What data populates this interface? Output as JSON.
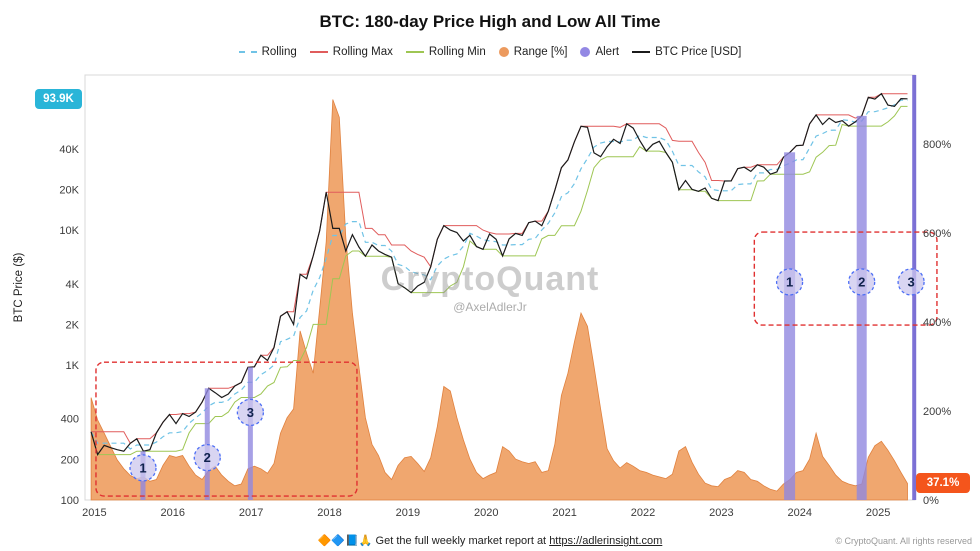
{
  "title": "BTC: 180-day Price High and Low All Time",
  "watermark": {
    "brand": "CryptoQuant",
    "handle": "@AxelAdlerJr"
  },
  "badges": {
    "price_label": "93.9K",
    "price_color": "#2ab5d8",
    "range_label": "37.1%",
    "range_color": "#f4551c"
  },
  "legend": {
    "items": [
      {
        "label": "Rolling",
        "color": "#70c3e6",
        "style": "dashed-line"
      },
      {
        "label": "Rolling Max",
        "color": "#e05c5c",
        "style": "line"
      },
      {
        "label": "Rolling Min",
        "color": "#9ec653",
        "style": "line"
      },
      {
        "label": "Range [%]",
        "color": "#ec9a5e",
        "style": "dot"
      },
      {
        "label": "Alert",
        "color": "#9388e4",
        "style": "dot"
      },
      {
        "label": "BTC Price [USD]",
        "color": "#1b1b1b",
        "style": "line"
      }
    ]
  },
  "footer": {
    "emojis": "🔶🔷📘🙏",
    "text": "Get the full weekly market report at",
    "link": "https://adlerinsight.com",
    "copyright": "© CryptoQuant. All rights reserved"
  },
  "chart_data": {
    "type": "line",
    "title": "BTC: 180-day Price High and Low All Time",
    "x_start_year": 2014.958,
    "x_step_years": 0.083333,
    "x_domain": [
      2014.88,
      2025.47
    ],
    "x_ticks": [
      2015,
      2016,
      2017,
      2018,
      2019,
      2020,
      2021,
      2022,
      2023,
      2024,
      2025
    ],
    "y_left": {
      "label": "BTC Price ($)",
      "scale": "log",
      "domain": [
        100,
        141000
      ],
      "ticks": [
        {
          "v": 40000,
          "t": "40K"
        },
        {
          "v": 20000,
          "t": "20K"
        },
        {
          "v": 10000,
          "t": "10K"
        },
        {
          "v": 4000,
          "t": "4K"
        },
        {
          "v": 2000,
          "t": "2K"
        },
        {
          "v": 1000,
          "t": "1K"
        },
        {
          "v": 400,
          "t": "400"
        },
        {
          "v": 200,
          "t": "200"
        },
        {
          "v": 100,
          "t": "100"
        }
      ]
    },
    "y_right": {
      "label": "Range [%]",
      "scale": "linear",
      "domain": [
        0,
        955
      ],
      "ticks": [
        {
          "v": 800,
          "t": "800%"
        },
        {
          "v": 600,
          "t": "600%"
        },
        {
          "v": 400,
          "t": "400%"
        },
        {
          "v": 200,
          "t": "200%"
        },
        {
          "v": 0,
          "t": "0%"
        }
      ]
    },
    "rolling_window_months": 6,
    "series": [
      {
        "name": "BTC Price [USD]",
        "axis": "left",
        "type": "line",
        "color": "#1b1b1b",
        "values": [
          320,
          217,
          254,
          244,
          236,
          230,
          263,
          284,
          230,
          236,
          314,
          377,
          430,
          368,
          437,
          416,
          448,
          531,
          673,
          624,
          575,
          610,
          700,
          742,
          963,
          970,
          1180,
          1080,
          1350,
          2300,
          2480,
          2000,
          4703,
          4360,
          6440,
          9916,
          19100,
          10300,
          10300,
          7000,
          9250,
          7500,
          6400,
          7750,
          7000,
          6600,
          6300,
          4000,
          3740,
          3440,
          3850,
          4100,
          5350,
          8550,
          10800,
          10000,
          9600,
          8300,
          9150,
          7550,
          7200,
          9350,
          8550,
          6440,
          8600,
          9450,
          9140,
          11350,
          11650,
          10780,
          13800,
          19700,
          29000,
          33100,
          45100,
          58800,
          57750,
          37300,
          35000,
          41500,
          47100,
          43800,
          61300,
          57000,
          46200,
          38500,
          43200,
          45500,
          37600,
          31800,
          19900,
          23300,
          20050,
          19400,
          20500,
          17200,
          16550,
          23100,
          23150,
          28500,
          29250,
          27200,
          30450,
          29230,
          25930,
          26970,
          34660,
          37700,
          42270,
          42580,
          61200,
          71330,
          60640,
          67540,
          62670,
          64620,
          58970,
          63330,
          70200,
          96450,
          93430,
          102400,
          84350,
          82550,
          94200,
          93900
        ]
      },
      {
        "name": "Range [%]",
        "axis": "right",
        "type": "area",
        "color": "#efa063",
        "stroke": "#e0813e",
        "values": [
          230,
          180,
          150,
          120,
          90,
          70,
          55,
          48,
          52,
          42,
          46,
          78,
          100,
          96,
          100,
          76,
          56,
          46,
          66,
          76,
          56,
          42,
          32,
          36,
          70,
          76,
          70,
          60,
          82,
          150,
          185,
          205,
          380,
          330,
          285,
          430,
          580,
          900,
          860,
          590,
          420,
          300,
          185,
          125,
          100,
          62,
          46,
          78,
          95,
          98,
          82,
          64,
          95,
          165,
          255,
          245,
          185,
          135,
          92,
          62,
          48,
          56,
          62,
          120,
          110,
          92,
          86,
          82,
          86,
          62,
          66,
          125,
          235,
          285,
          355,
          420,
          390,
          300,
          205,
          115,
          88,
          72,
          84,
          76,
          66,
          62,
          56,
          52,
          48,
          58,
          110,
          120,
          85,
          58,
          38,
          32,
          30,
          46,
          52,
          66,
          62,
          46,
          42,
          32,
          24,
          20,
          36,
          46,
          62,
          66,
          92,
          150,
          98,
          78,
          56,
          42,
          36,
          32,
          36,
          96,
          122,
          132,
          112,
          88,
          62,
          37.1
        ]
      },
      {
        "name": "Rolling Max",
        "axis": "left",
        "type": "line",
        "color": "#e05c5c",
        "derived": "rolling_max_of_price",
        "window": 6
      },
      {
        "name": "Rolling Min",
        "axis": "left",
        "type": "line",
        "color": "#9ec653",
        "derived": "rolling_min_of_price",
        "window": 6
      },
      {
        "name": "Rolling",
        "axis": "left",
        "type": "line",
        "dashed": true,
        "color": "#70c3e6",
        "derived": "geometric_mid_of_rolling_max_min",
        "window": 6
      }
    ],
    "alerts": {
      "color": "#9188e0",
      "full_line_color": "#6f63d2",
      "bars": [
        {
          "x": 2015.62,
          "w": 5
        },
        {
          "x": 2016.44,
          "w": 5
        },
        {
          "x": 2016.99,
          "w": 5
        },
        {
          "x": 2023.87,
          "w": 11
        },
        {
          "x": 2024.79,
          "w": 10
        }
      ],
      "full_height_line_x": 2025.46
    },
    "annotations": {
      "box_color": "#e03131",
      "marker_fill": "#ccc7ee",
      "marker_stroke": "#4c6ef5",
      "boxes": [
        {
          "axis": "left",
          "x0": 2015.02,
          "x1": 2018.35,
          "y0": 107,
          "y1": 1050
        },
        {
          "axis": "right",
          "x0": 2023.42,
          "x1": 2025.75,
          "y0": 393,
          "y1": 602
        }
      ],
      "markers": [
        {
          "label": "1",
          "axis": "left",
          "x": 2015.62,
          "y": 173
        },
        {
          "label": "2",
          "axis": "left",
          "x": 2016.44,
          "y": 206
        },
        {
          "label": "3",
          "axis": "left",
          "x": 2016.99,
          "y": 446
        },
        {
          "label": "1",
          "axis": "right",
          "x": 2023.87,
          "y": 490
        },
        {
          "label": "2",
          "axis": "right",
          "x": 2024.79,
          "y": 490
        },
        {
          "label": "3",
          "axis": "right",
          "x": 2025.42,
          "y": 490
        }
      ]
    },
    "current_price_label": "93.9K",
    "current_range_label": "37.1%"
  }
}
